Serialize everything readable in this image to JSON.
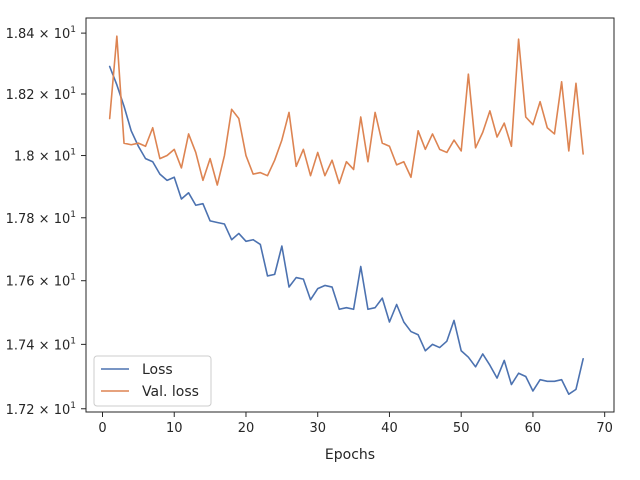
{
  "chart_data": {
    "type": "line",
    "title": "",
    "xlabel": "Epochs",
    "ylabel": "",
    "xlim": [
      -2.3,
      71.3
    ],
    "ylim": [
      17.19,
      18.45
    ],
    "y_scale": "log",
    "grid": false,
    "legend_position": "lower-left",
    "x_ticks": [
      0,
      10,
      20,
      30,
      40,
      50,
      60,
      70
    ],
    "x_tick_labels": [
      "0",
      "10",
      "20",
      "30",
      "40",
      "50",
      "60",
      "70"
    ],
    "y_ticks": [
      17.2,
      17.4,
      17.6,
      17.8,
      18.0,
      18.2,
      18.4
    ],
    "y_tick_mantissas": [
      "1.72",
      "1.74",
      "1.76",
      "1.78",
      "1.8",
      "1.82",
      "1.84"
    ],
    "y_tick_base": "× 10",
    "y_tick_exponent": "1",
    "x": [
      1,
      2,
      3,
      4,
      5,
      6,
      7,
      8,
      9,
      10,
      11,
      12,
      13,
      14,
      15,
      16,
      17,
      18,
      19,
      20,
      21,
      22,
      23,
      24,
      25,
      26,
      27,
      28,
      29,
      30,
      31,
      32,
      33,
      34,
      35,
      36,
      37,
      38,
      39,
      40,
      41,
      42,
      43,
      44,
      45,
      46,
      47,
      48,
      49,
      50,
      51,
      52,
      53,
      54,
      55,
      56,
      57,
      58,
      59,
      60,
      61,
      62,
      63,
      64,
      65,
      66,
      67
    ],
    "series": [
      {
        "name": "Loss",
        "color": "#4c72b0",
        "values": [
          18.29,
          18.23,
          18.16,
          18.08,
          18.03,
          17.99,
          17.98,
          17.94,
          17.92,
          17.93,
          17.86,
          17.88,
          17.84,
          17.845,
          17.79,
          17.785,
          17.78,
          17.73,
          17.75,
          17.725,
          17.73,
          17.715,
          17.615,
          17.62,
          17.71,
          17.58,
          17.61,
          17.605,
          17.54,
          17.575,
          17.585,
          17.58,
          17.51,
          17.515,
          17.51,
          17.645,
          17.51,
          17.515,
          17.545,
          17.47,
          17.525,
          17.47,
          17.44,
          17.43,
          17.38,
          17.4,
          17.39,
          17.41,
          17.475,
          17.38,
          17.36,
          17.33,
          17.37,
          17.335,
          17.295,
          17.35,
          17.275,
          17.31,
          17.3,
          17.255,
          17.29,
          17.285,
          17.285,
          17.29,
          17.245,
          17.26,
          17.355
        ]
      },
      {
        "name": "Val. loss",
        "color": "#dd8452",
        "values": [
          18.12,
          18.39,
          18.04,
          18.035,
          18.04,
          18.03,
          18.09,
          17.99,
          18.0,
          18.02,
          17.96,
          18.07,
          18.01,
          17.92,
          17.99,
          17.905,
          18.0,
          18.15,
          18.12,
          18.0,
          17.94,
          17.945,
          17.935,
          17.985,
          18.05,
          18.14,
          17.965,
          18.02,
          17.935,
          18.01,
          17.935,
          17.985,
          17.91,
          17.98,
          17.955,
          18.125,
          17.98,
          18.14,
          18.04,
          18.03,
          17.97,
          17.98,
          17.93,
          18.08,
          18.02,
          18.07,
          18.02,
          18.01,
          18.05,
          18.015,
          18.265,
          18.025,
          18.075,
          18.145,
          18.06,
          18.105,
          18.03,
          18.38,
          18.125,
          18.1,
          18.175,
          18.09,
          18.07,
          18.24,
          18.015,
          18.235,
          18.005
        ]
      }
    ]
  }
}
